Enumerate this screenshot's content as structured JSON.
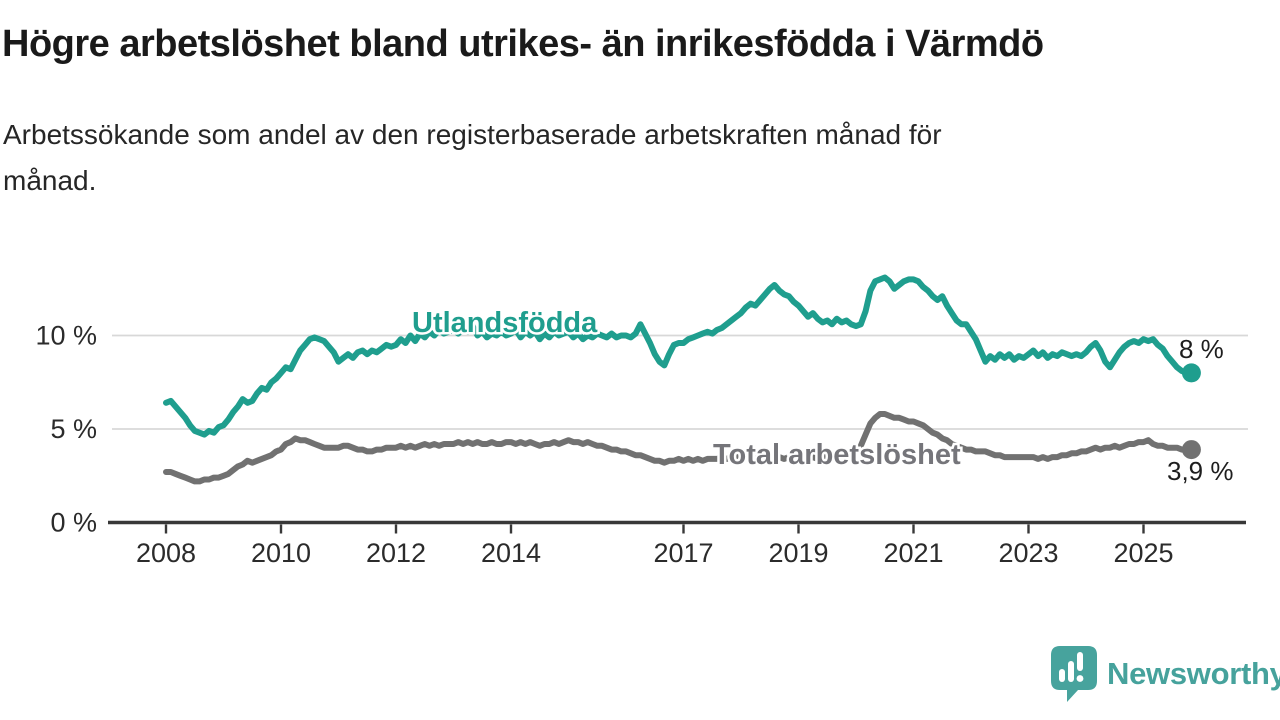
{
  "header": {
    "title": "Högre arbetslöshet bland utrikes- än inrikesfödda i Värmdö",
    "subtitle": "Arbetssökande som andel av den registerbaserade arbetskraften månad för\nmånad."
  },
  "chart_data": {
    "type": "line",
    "title": "Högre arbetslöshet bland utrikes- än inrikesfödda i Värmdö",
    "subtitle": "Arbetssökande som andel av den registerbaserade arbetskraften månad för månad.",
    "frequency": "monthly",
    "x_start": {
      "year": 2008,
      "month": 1
    },
    "x_end": {
      "year": 2025,
      "month": 11
    },
    "x_ticks": [
      2008,
      2010,
      2012,
      2014,
      2017,
      2019,
      2021,
      2023,
      2025
    ],
    "y_ticks": [
      {
        "value": 0,
        "label": "0 %"
      },
      {
        "value": 5,
        "label": "5 %"
      },
      {
        "value": 10,
        "label": "10 %"
      }
    ],
    "ylim": [
      0,
      14.3
    ],
    "grid": "horizontal-only",
    "legend_position": "inline-labels",
    "series": [
      {
        "id": "utlandsfodda",
        "name": "Utlandsfödda",
        "color": "#1f9e8e",
        "label_color": "#1f9e8e",
        "end_label": "8 %",
        "end_value": 8.0,
        "values": [
          6.4,
          6.5,
          6.2,
          5.9,
          5.6,
          5.2,
          4.9,
          4.8,
          4.7,
          4.9,
          4.8,
          5.1,
          5.2,
          5.5,
          5.9,
          6.2,
          6.6,
          6.4,
          6.5,
          6.9,
          7.2,
          7.1,
          7.5,
          7.7,
          8.0,
          8.3,
          8.2,
          8.7,
          9.2,
          9.5,
          9.8,
          9.9,
          9.8,
          9.7,
          9.4,
          9.1,
          8.6,
          8.8,
          9.0,
          8.8,
          9.1,
          9.2,
          9.0,
          9.2,
          9.1,
          9.3,
          9.5,
          9.4,
          9.5,
          9.8,
          9.6,
          10.0,
          9.7,
          10.1,
          9.9,
          10.2,
          10.0,
          10.3,
          10.1,
          10.2,
          10.3,
          10.1,
          10.4,
          10.2,
          10.5,
          10.0,
          10.2,
          9.9,
          10.1,
          10.0,
          10.2,
          10.0,
          10.1,
          10.3,
          9.9,
          10.2,
          10.0,
          10.2,
          9.8,
          10.1,
          9.9,
          10.2,
          10.0,
          10.1,
          10.2,
          9.9,
          10.1,
          9.8,
          10.0,
          9.9,
          10.1,
          10.0,
          9.9,
          10.1,
          9.9,
          10.0,
          10.0,
          9.9,
          10.1,
          10.6,
          10.1,
          9.6,
          9.0,
          8.6,
          8.4,
          9.0,
          9.5,
          9.6,
          9.6,
          9.8,
          9.9,
          10.0,
          10.1,
          10.2,
          10.1,
          10.3,
          10.4,
          10.6,
          10.8,
          11.0,
          11.2,
          11.5,
          11.7,
          11.6,
          11.9,
          12.2,
          12.5,
          12.7,
          12.4,
          12.2,
          12.1,
          11.8,
          11.6,
          11.3,
          11.0,
          11.2,
          10.9,
          10.7,
          10.8,
          10.6,
          10.9,
          10.7,
          10.8,
          10.6,
          10.5,
          10.6,
          11.3,
          12.4,
          12.9,
          13.0,
          13.1,
          12.9,
          12.5,
          12.7,
          12.9,
          13.0,
          13.0,
          12.9,
          12.6,
          12.4,
          12.1,
          11.9,
          12.1,
          11.6,
          11.2,
          10.8,
          10.6,
          10.6,
          10.2,
          9.8,
          9.2,
          8.6,
          8.9,
          8.7,
          9.0,
          8.8,
          9.0,
          8.7,
          8.9,
          8.8,
          9.0,
          9.2,
          8.9,
          9.1,
          8.8,
          9.0,
          8.9,
          9.1,
          9.0,
          8.9,
          9.0,
          8.9,
          9.1,
          9.4,
          9.6,
          9.2,
          8.6,
          8.3,
          8.7,
          9.1,
          9.4,
          9.6,
          9.7,
          9.6,
          9.8,
          9.7,
          9.8,
          9.5,
          9.3,
          8.9,
          8.6,
          8.3,
          8.1,
          8.0,
          8.0
        ]
      },
      {
        "id": "total",
        "name": "Total arbetslöshet",
        "color": "#717171",
        "label_color": "#75757a",
        "end_label": "3,9 %",
        "end_value": 3.9,
        "values": [
          2.7,
          2.7,
          2.6,
          2.5,
          2.4,
          2.3,
          2.2,
          2.2,
          2.3,
          2.3,
          2.4,
          2.4,
          2.5,
          2.6,
          2.8,
          3.0,
          3.1,
          3.3,
          3.2,
          3.3,
          3.4,
          3.5,
          3.6,
          3.8,
          3.9,
          4.2,
          4.3,
          4.5,
          4.4,
          4.4,
          4.3,
          4.2,
          4.1,
          4.0,
          4.0,
          4.0,
          4.0,
          4.1,
          4.1,
          4.0,
          3.9,
          3.9,
          3.8,
          3.8,
          3.9,
          3.9,
          4.0,
          4.0,
          4.0,
          4.1,
          4.0,
          4.1,
          4.0,
          4.1,
          4.2,
          4.1,
          4.2,
          4.1,
          4.2,
          4.2,
          4.2,
          4.3,
          4.2,
          4.3,
          4.2,
          4.3,
          4.2,
          4.2,
          4.3,
          4.2,
          4.2,
          4.3,
          4.3,
          4.2,
          4.3,
          4.2,
          4.3,
          4.2,
          4.1,
          4.2,
          4.2,
          4.3,
          4.2,
          4.3,
          4.4,
          4.3,
          4.3,
          4.2,
          4.3,
          4.2,
          4.1,
          4.1,
          4.0,
          3.9,
          3.9,
          3.8,
          3.8,
          3.7,
          3.6,
          3.6,
          3.5,
          3.4,
          3.3,
          3.3,
          3.2,
          3.3,
          3.3,
          3.4,
          3.3,
          3.4,
          3.3,
          3.4,
          3.3,
          3.4,
          3.4,
          3.4,
          3.5,
          3.4,
          3.5,
          3.5,
          3.5,
          3.6,
          3.5,
          3.5,
          3.6,
          3.5,
          3.5,
          3.4,
          3.5,
          3.4,
          3.5,
          3.4,
          3.5,
          3.4,
          3.4,
          3.5,
          3.4,
          3.5,
          3.5,
          3.6,
          3.6,
          3.7,
          3.7,
          3.8,
          3.9,
          4.1,
          4.7,
          5.3,
          5.6,
          5.8,
          5.8,
          5.7,
          5.6,
          5.6,
          5.5,
          5.4,
          5.4,
          5.3,
          5.2,
          5.0,
          4.8,
          4.7,
          4.5,
          4.4,
          4.2,
          4.1,
          4.0,
          3.9,
          3.9,
          3.8,
          3.8,
          3.8,
          3.7,
          3.6,
          3.6,
          3.5,
          3.5,
          3.5,
          3.5,
          3.5,
          3.5,
          3.5,
          3.4,
          3.5,
          3.4,
          3.5,
          3.5,
          3.6,
          3.6,
          3.7,
          3.7,
          3.8,
          3.8,
          3.9,
          4.0,
          3.9,
          4.0,
          4.0,
          4.1,
          4.0,
          4.1,
          4.2,
          4.2,
          4.3,
          4.3,
          4.4,
          4.2,
          4.1,
          4.1,
          4.0,
          4.0,
          4.0,
          3.9,
          3.9,
          3.9
        ]
      }
    ],
    "colors": {
      "grid": "#d8d8d8",
      "axis": "#383838",
      "tick_label": "#2b2b2b",
      "annotation": "#1e1e1e"
    }
  },
  "footer": {
    "brand": "Newsworthy",
    "brand_color": "#46a29c"
  }
}
